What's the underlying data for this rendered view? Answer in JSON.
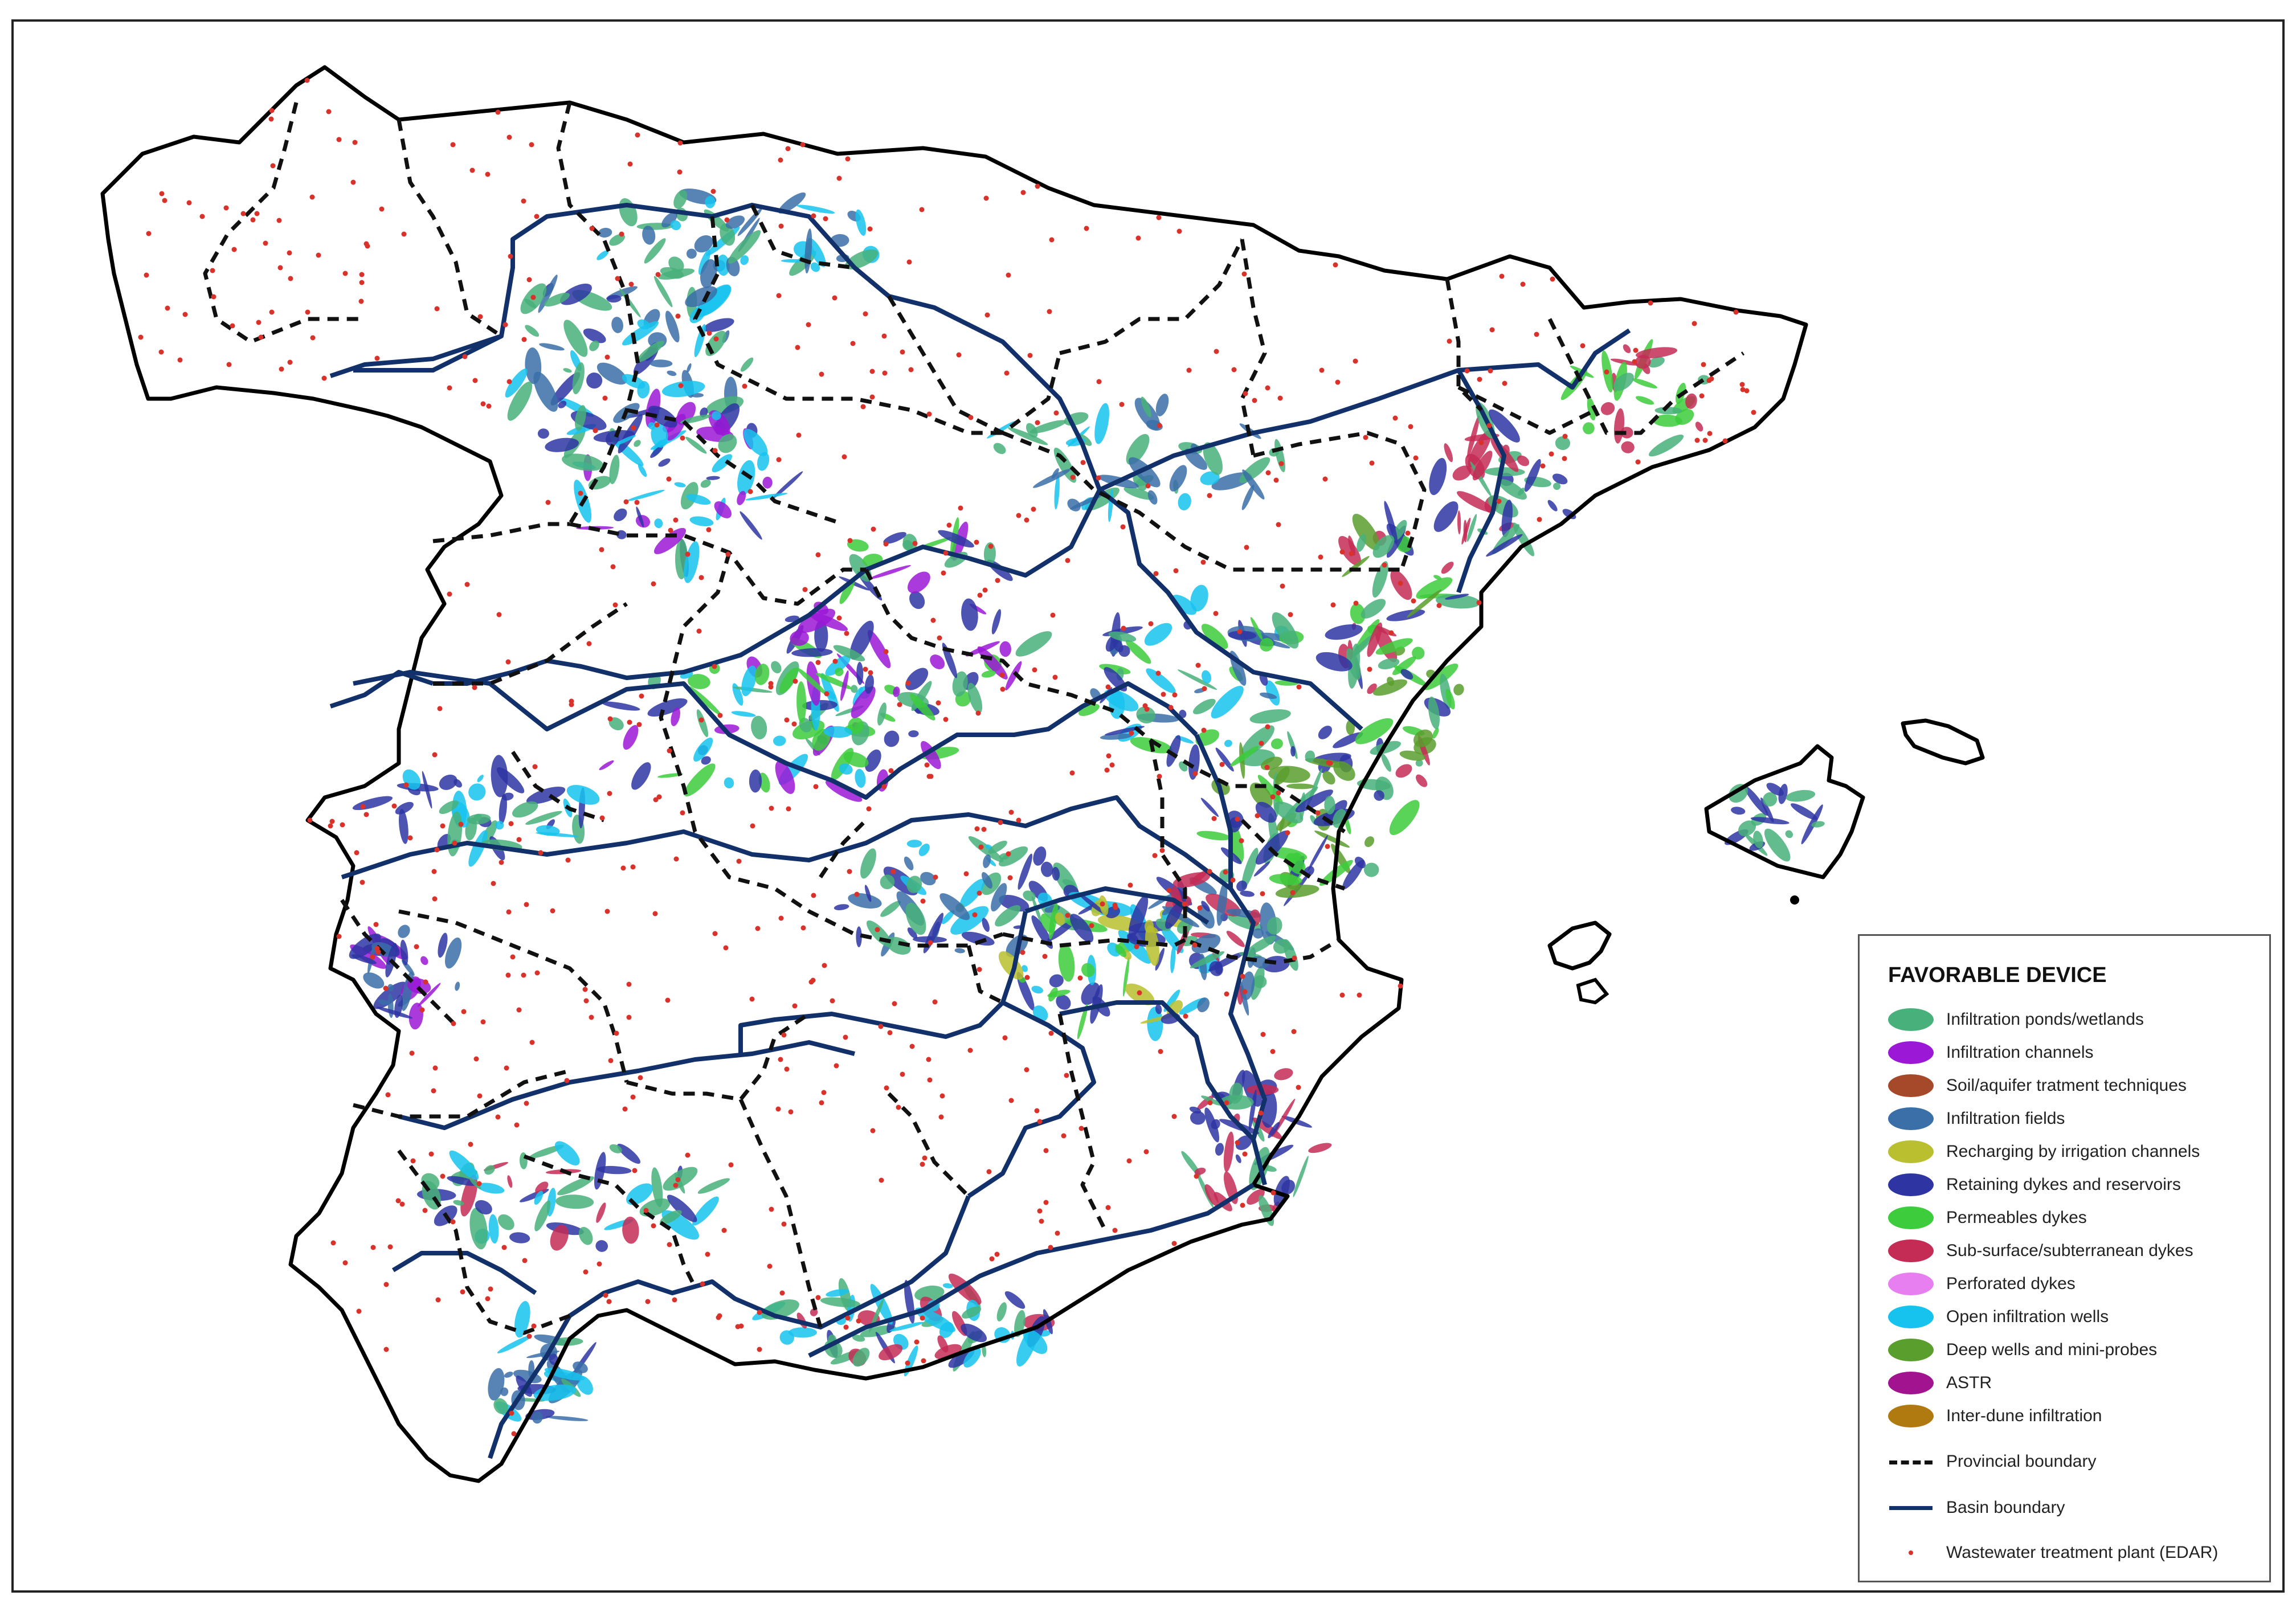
{
  "legend": {
    "title": "FAVORABLE DEVICE",
    "devices": [
      {
        "label": "Infiltration ponds/wetlands",
        "color": "#48b07a"
      },
      {
        "label": "Infiltration channels",
        "color": "#9b18d6"
      },
      {
        "label": "Soil/aquifer tratment techniques",
        "color": "#a5492a"
      },
      {
        "label": "Infiltration fields",
        "color": "#3a6fa8"
      },
      {
        "label": "Recharging by irrigation channels",
        "color": "#b9bf2e"
      },
      {
        "label": "Retaining dykes and reservoirs",
        "color": "#2e35a3"
      },
      {
        "label": "Permeables dykes",
        "color": "#3ccc3c"
      },
      {
        "label": "Sub-surface/subterranean dykes",
        "color": "#c42c55"
      },
      {
        "label": "Perforated dykes",
        "color": "#e77ff0"
      },
      {
        "label": "Open infiltration wells",
        "color": "#16c3ef"
      },
      {
        "label": "Deep wells and mini-probes",
        "color": "#5a9e2e"
      },
      {
        "label": "ASTR",
        "color": "#a1138f"
      },
      {
        "label": "Inter-dune infiltration",
        "color": "#b07a10"
      }
    ],
    "boundaries": [
      {
        "label": "Provincial boundary",
        "style": "dashed",
        "color": "#111111"
      },
      {
        "label": "Basin boundary",
        "style": "solid",
        "color": "#12306a"
      },
      {
        "label": "Wastewater treatment plant (EDAR)",
        "style": "dot",
        "color": "#d9322b"
      }
    ]
  }
}
